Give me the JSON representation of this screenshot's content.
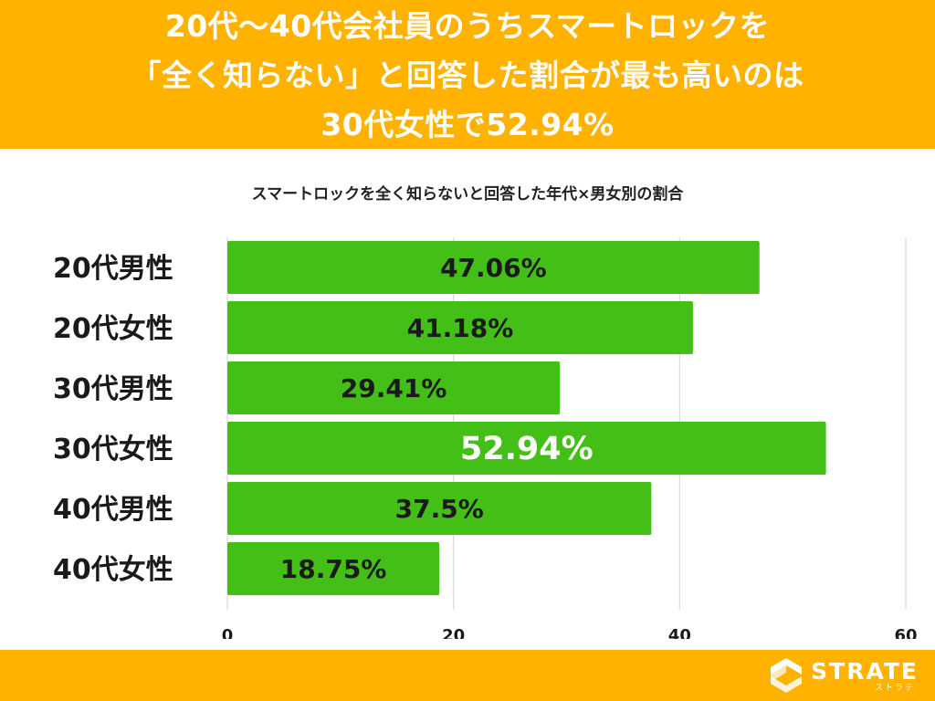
{
  "header": {
    "lines": [
      "20代〜40代会社員のうちスマートロックを",
      "「全く知らない」と回答した割合が最も高いのは",
      "30代女性で52.94%"
    ]
  },
  "chart_data": {
    "type": "bar",
    "orientation": "horizontal",
    "title": "スマートロックを全く知らないと回答した年代×男女別の割合",
    "categories": [
      "20代男性",
      "20代女性",
      "30代男性",
      "30代女性",
      "40代男性",
      "40代女性"
    ],
    "values": [
      47.06,
      41.18,
      29.41,
      52.94,
      37.5,
      18.75
    ],
    "data_labels": [
      "47.06%",
      "41.18%",
      "29.41%",
      "52.94%",
      "37.5%",
      "18.75%"
    ],
    "highlight_index": 3,
    "xlim": [
      0,
      60
    ],
    "xticks": [
      0,
      20,
      40,
      60
    ],
    "xtick_labels": [
      "0",
      "20",
      "40",
      "60"
    ],
    "grid": true,
    "bar_color": "#43bf17",
    "label_color": "#1a1a1a",
    "highlight_label_color": "#ffffff"
  },
  "colors": {
    "header_bg": "#ffb200",
    "footer_bg": "#ffb200"
  },
  "footer": {
    "logo_main": "STRATE",
    "logo_sub": "ストラテ",
    "logo_icon": "strate-logo-icon"
  }
}
